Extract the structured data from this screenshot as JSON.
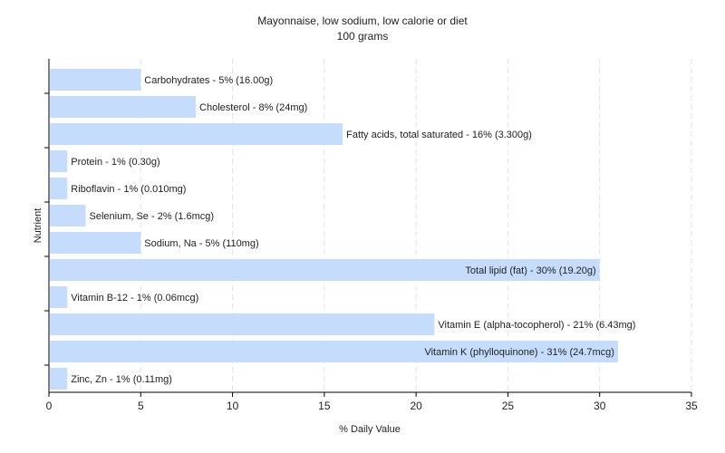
{
  "chart_data": {
    "type": "bar",
    "orientation": "horizontal",
    "title": "Mayonnaise, low sodium, low calorie or diet",
    "subtitle": "100 grams",
    "xlabel": "% Daily Value",
    "ylabel": "Nutrient",
    "xlim": [
      0,
      35
    ],
    "xticks": [
      0,
      5,
      10,
      15,
      20,
      25,
      30,
      35
    ],
    "grid": true,
    "bar_color": "#c6dcfc",
    "categories": [
      "Carbohydrates",
      "Cholesterol",
      "Fatty acids, total saturated",
      "Protein",
      "Riboflavin",
      "Selenium, Se",
      "Sodium, Na",
      "Total lipid (fat)",
      "Vitamin B-12",
      "Vitamin E (alpha-tocopherol)",
      "Vitamin K (phylloquinone)",
      "Zinc, Zn"
    ],
    "values": [
      5,
      8,
      16,
      1,
      1,
      2,
      5,
      30,
      1,
      21,
      31,
      1
    ],
    "data_labels": [
      "Carbohydrates - 5% (16.00g)",
      "Cholesterol - 8% (24mg)",
      "Fatty acids, total saturated - 16% (3.300g)",
      "Protein - 1% (0.30g)",
      "Riboflavin - 1% (0.010mg)",
      "Selenium, Se - 2% (1.6mcg)",
      "Sodium, Na - 5% (110mg)",
      "Total lipid (fat) - 30% (19.20g)",
      "Vitamin B-12 - 1% (0.06mcg)",
      "Vitamin E (alpha-tocopherol) - 21% (6.43mg)",
      "Vitamin K (phylloquinone) - 31% (24.7mcg)",
      "Zinc, Zn - 1% (0.11mg)"
    ]
  }
}
